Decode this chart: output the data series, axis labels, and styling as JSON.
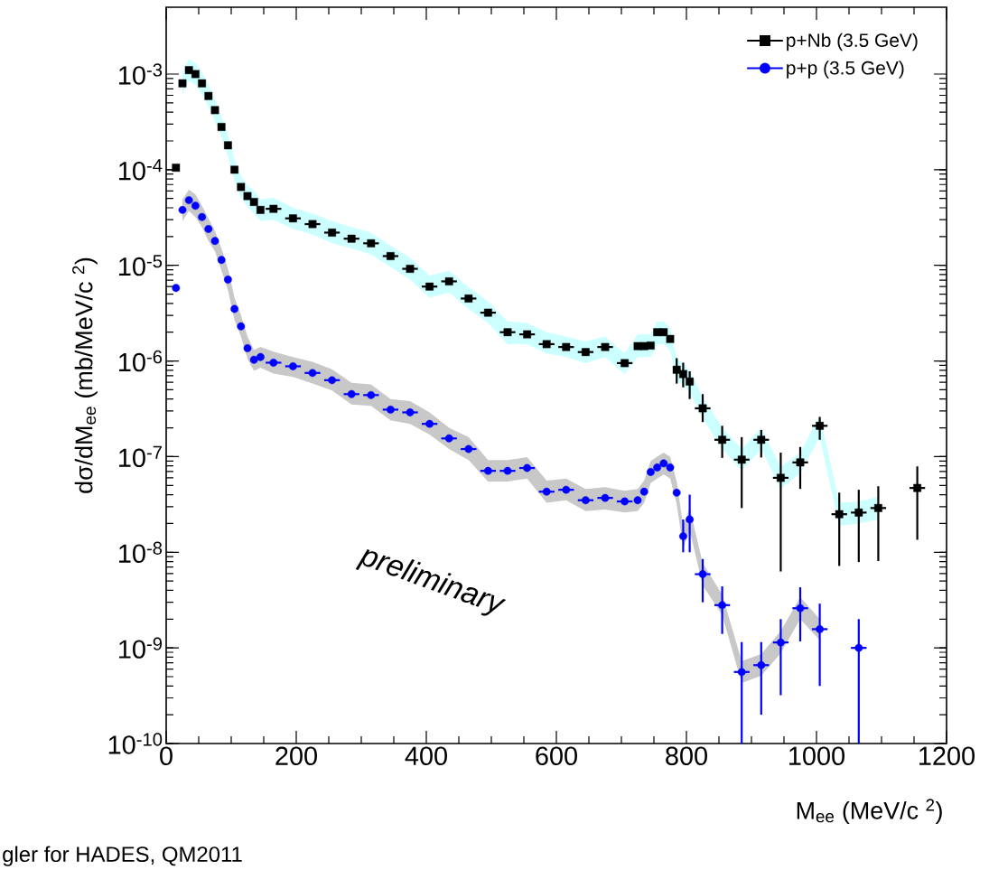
{
  "chart_data": {
    "type": "scatter",
    "xlabel": "M$_{ee}$ (MeV/c $^{2}$)",
    "ylabel": "dσ/dM$_{ee}$ (mb/MeV/c $^{2}$)",
    "annotations": [
      "preliminary",
      "gler for HADES, QM2011"
    ],
    "log": "y",
    "grid": false,
    "legend": "top right",
    "xlim": [
      0,
      1200
    ],
    "xticks": [
      0,
      200,
      400,
      600,
      800,
      1000,
      1200
    ],
    "ylim": [
      1e-10,
      0.005
    ],
    "yticks": [
      {
        "value": 1e-10,
        "label": "10$^{-10}$"
      },
      {
        "value": 1e-09,
        "label": "10$^{-9}$"
      },
      {
        "value": 1e-08,
        "label": "10$^{-8}$"
      },
      {
        "value": 1e-07,
        "label": "10$^{-7}$"
      },
      {
        "value": 1e-06,
        "label": "10$^{-6}$"
      },
      {
        "value": 1e-05,
        "label": "10$^{-5}$"
      },
      {
        "value": 0.0001,
        "label": "10$^{-4}$"
      },
      {
        "value": 0.001,
        "label": "10$^{-3}$"
      }
    ],
    "series": [
      {
        "name": "p+Nb (3.5 GeV)",
        "color": "#000000",
        "marker": "square",
        "x": [
          15,
          25,
          35,
          45,
          55,
          65,
          75,
          85,
          95,
          105,
          115,
          125,
          135,
          145,
          165,
          195,
          225,
          255,
          285,
          315,
          345,
          375,
          405,
          435,
          465,
          495,
          525,
          555,
          585,
          615,
          645,
          675,
          705,
          725,
          735,
          745,
          755,
          765,
          775,
          785,
          795,
          805,
          825,
          855,
          885,
          915,
          945,
          975,
          1005,
          1035,
          1065,
          1095,
          1155
        ],
        "values": [
          0.000105,
          0.0008,
          0.0011,
          0.001,
          0.0008,
          0.00059,
          0.00042,
          0.00028,
          0.00018,
          0.0001,
          6.6e-05,
          5.3e-05,
          4.6e-05,
          3.8e-05,
          3.9e-05,
          3.1e-05,
          2.7e-05,
          2.2e-05,
          1.9e-05,
          1.7e-05,
          1.25e-05,
          9.2e-06,
          6e-06,
          6.8e-06,
          4.5e-06,
          3.2e-06,
          2e-06,
          1.9e-06,
          1.5e-06,
          1.4e-06,
          1.24e-06,
          1.4e-06,
          9.5e-07,
          1.43e-06,
          1.43e-06,
          1.45e-06,
          2e-06,
          2e-06,
          1.7e-06,
          8.1e-07,
          7.3e-07,
          6.1e-07,
          3.2e-07,
          1.5e-07,
          9.3e-08,
          1.5e-07,
          6e-08,
          8.7e-08,
          2.1e-07,
          2.5e-08,
          2.6e-08,
          2.9e-08,
          4.7e-08
        ],
        "lower": [
          null,
          0.00062,
          0.00085,
          0.00077,
          0.00062,
          0.00045,
          0.00032,
          0.00022,
          0.00014,
          7.7e-05,
          5.1e-05,
          4.1e-05,
          3.5e-05,
          2.9e-05,
          3e-05,
          2.4e-05,
          2.1e-05,
          1.7e-05,
          1.5e-05,
          1.3e-05,
          9.6e-06,
          7.1e-06,
          4.6e-06,
          5.2e-06,
          3.5e-06,
          2.5e-06,
          1.5e-06,
          1.5e-06,
          1.2e-06,
          1.1e-06,
          9.5e-07,
          1.1e-06,
          7.3e-07,
          1.1e-06,
          1.1e-06,
          1.1e-06,
          1.5e-06,
          1.5e-06,
          1.3e-06,
          6.2e-07,
          5.6e-07,
          4.7e-07,
          2.5e-07,
          1.2e-07,
          7.2e-08,
          1.2e-07,
          4.6e-08,
          6.7e-08,
          1.6e-07,
          1.9e-08,
          2e-08,
          2.2e-08,
          null
        ],
        "upper": [
          null,
          0.00104,
          0.00143,
          0.0013,
          0.00104,
          0.00077,
          0.00055,
          0.00036,
          0.00023,
          0.00013,
          8.6e-05,
          6.9e-05,
          6e-05,
          4.9e-05,
          5.1e-05,
          4e-05,
          3.5e-05,
          2.9e-05,
          2.5e-05,
          2.2e-05,
          1.6e-05,
          1.2e-05,
          7.8e-06,
          8.8e-06,
          5.9e-06,
          4.2e-06,
          2.6e-06,
          2.5e-06,
          2e-06,
          1.8e-06,
          1.6e-06,
          1.8e-06,
          1.2e-06,
          1.9e-06,
          1.9e-06,
          1.9e-06,
          2.6e-06,
          2.6e-06,
          2.2e-06,
          1.05e-06,
          9.5e-07,
          7.9e-07,
          4.2e-07,
          2e-07,
          1.2e-07,
          2e-07,
          7.8e-08,
          1.1e-07,
          2.7e-07,
          3.3e-08,
          3.4e-08,
          3.8e-08,
          null
        ],
        "errors": [
          null,
          null,
          null,
          null,
          null,
          null,
          null,
          null,
          null,
          null,
          null,
          null,
          null,
          null,
          null,
          null,
          null,
          null,
          null,
          null,
          null,
          null,
          null,
          null,
          null,
          null,
          null,
          null,
          null,
          null,
          null,
          null,
          null,
          null,
          null,
          null,
          null,
          null,
          null,
          [
            5.8e-07,
            1.07e-06
          ],
          [
            5.3e-07,
            9.6e-07
          ],
          [
            4e-07,
            7.8e-07
          ],
          [
            2.3e-07,
            4.5e-07
          ],
          [
            9.7e-08,
            2.1e-07
          ],
          [
            2.9e-08,
            1.6e-07
          ],
          [
            9.8e-08,
            1.9e-07
          ],
          [
            6.3e-09,
            1.1e-07
          ],
          [
            4.6e-08,
            1.26e-07
          ],
          [
            1.5e-07,
            2.6e-07
          ],
          [
            7.2e-09,
            4.2e-08
          ],
          [
            7.9e-09,
            4.5e-08
          ],
          [
            8.1e-09,
            4.9e-08
          ],
          [
            1.35e-08,
            7.9e-08
          ]
        ],
        "xerrors": [
          null,
          null,
          null,
          null,
          null,
          null,
          null,
          null,
          null,
          null,
          null,
          null,
          null,
          null,
          12,
          12,
          12,
          12,
          12,
          12,
          12,
          12,
          12,
          12,
          12,
          12,
          12,
          12,
          12,
          12,
          12,
          12,
          12,
          null,
          null,
          null,
          null,
          null,
          null,
          null,
          null,
          null,
          12,
          12,
          12,
          12,
          12,
          12,
          12,
          12,
          12,
          12,
          12
        ]
      },
      {
        "name": "p+p (3.5 GeV)",
        "color": "#0000ff",
        "marker": "circle",
        "x": [
          15,
          25,
          35,
          45,
          55,
          65,
          75,
          85,
          95,
          105,
          115,
          125,
          135,
          145,
          165,
          195,
          225,
          255,
          285,
          315,
          345,
          375,
          405,
          435,
          465,
          495,
          525,
          555,
          585,
          615,
          645,
          675,
          705,
          725,
          735,
          745,
          755,
          765,
          775,
          785,
          795,
          805,
          825,
          855,
          885,
          915,
          945,
          975,
          1005,
          1065
        ],
        "values": [
          5.8e-06,
          3.8e-05,
          4.8e-05,
          4.2e-05,
          3.2e-05,
          2.4e-05,
          1.8e-05,
          1.14e-05,
          7.1e-06,
          3.5e-06,
          2.3e-06,
          1.36e-06,
          1.03e-06,
          1.1e-06,
          9.6e-07,
          8.8e-07,
          7.5e-07,
          6.3e-07,
          4.5e-07,
          4.4e-07,
          3.1e-07,
          2.9e-07,
          2.2e-07,
          1.55e-07,
          1.2e-07,
          7.1e-08,
          7.1e-08,
          7.6e-08,
          4.3e-08,
          4.5e-08,
          3.5e-08,
          3.7e-08,
          3.4e-08,
          3.5e-08,
          4.3e-08,
          6.9e-08,
          7.7e-08,
          8.5e-08,
          7.7e-08,
          4.2e-08,
          1.47e-08,
          2.2e-08,
          5.9e-09,
          2.8e-09,
          5.6e-10,
          6.6e-10,
          1.14e-09,
          2.6e-09,
          1.57e-09,
          1e-09
        ],
        "lower": [
          null,
          2.9e-05,
          3.7e-05,
          3.2e-05,
          2.5e-05,
          1.8e-05,
          1.4e-05,
          8.8e-06,
          5.5e-06,
          2.7e-06,
          1.8e-06,
          1.05e-06,
          7.9e-07,
          8.5e-07,
          7.4e-07,
          6.8e-07,
          5.8e-07,
          4.9e-07,
          3.5e-07,
          3.4e-07,
          2.4e-07,
          2.2e-07,
          1.7e-07,
          1.2e-07,
          9.2e-08,
          5.5e-08,
          5.5e-08,
          5.9e-08,
          3.3e-08,
          3.5e-08,
          2.7e-08,
          2.8e-08,
          2.6e-08,
          2.7e-08,
          3.3e-08,
          5.3e-08,
          5.9e-08,
          6.5e-08,
          5.9e-08,
          3.2e-08,
          1.1e-08,
          1.7e-08,
          4.5e-09,
          2.2e-09,
          4.3e-10,
          5.1e-10,
          8.8e-10,
          2e-09,
          1.2e-09,
          null
        ],
        "upper": [
          null,
          4.9e-05,
          6.2e-05,
          5.5e-05,
          4.2e-05,
          3.1e-05,
          2.3e-05,
          1.5e-05,
          9.2e-06,
          4.6e-06,
          3e-06,
          1.8e-06,
          1.3e-06,
          1.4e-06,
          1.25e-06,
          1.1e-06,
          9.8e-07,
          8.2e-07,
          5.9e-07,
          5.7e-07,
          4e-07,
          3.8e-07,
          2.9e-07,
          2e-07,
          1.6e-07,
          9.2e-08,
          9.2e-08,
          9.9e-08,
          5.6e-08,
          5.9e-08,
          4.6e-08,
          4.8e-08,
          4.4e-08,
          4.6e-08,
          5.6e-08,
          9e-08,
          1e-07,
          1.1e-07,
          1e-07,
          5.5e-08,
          1.9e-08,
          2.9e-08,
          7.7e-09,
          3.6e-09,
          7.3e-10,
          8.6e-10,
          1.5e-09,
          3.4e-09,
          2e-09,
          null
        ],
        "errors": [
          null,
          null,
          null,
          null,
          null,
          null,
          null,
          null,
          null,
          null,
          null,
          null,
          null,
          null,
          null,
          null,
          null,
          null,
          null,
          null,
          null,
          null,
          null,
          null,
          null,
          null,
          null,
          null,
          null,
          null,
          null,
          null,
          null,
          null,
          null,
          null,
          null,
          null,
          null,
          null,
          [
            1e-08,
            2.2e-08
          ],
          [
            1e-08,
            4e-08
          ],
          [
            3e-09,
            8.5e-09
          ],
          [
            1.4e-09,
            4.4e-09
          ],
          [
            1e-10,
            1.15e-09
          ],
          [
            2e-10,
            1.15e-09
          ],
          [
            3.2e-10,
            2e-09
          ],
          [
            1.17e-09,
            4.3e-09
          ],
          [
            4e-10,
            2.9e-09
          ],
          [
            1e-10,
            2e-09
          ]
        ],
        "xerrors": [
          null,
          null,
          null,
          null,
          null,
          null,
          null,
          null,
          null,
          null,
          null,
          null,
          null,
          null,
          12,
          12,
          12,
          12,
          12,
          12,
          12,
          12,
          12,
          12,
          12,
          12,
          12,
          12,
          12,
          12,
          12,
          12,
          12,
          5,
          5,
          5,
          5,
          5,
          5,
          5,
          5,
          5,
          12,
          12,
          12,
          12,
          12,
          12,
          12,
          12
        ]
      }
    ]
  }
}
